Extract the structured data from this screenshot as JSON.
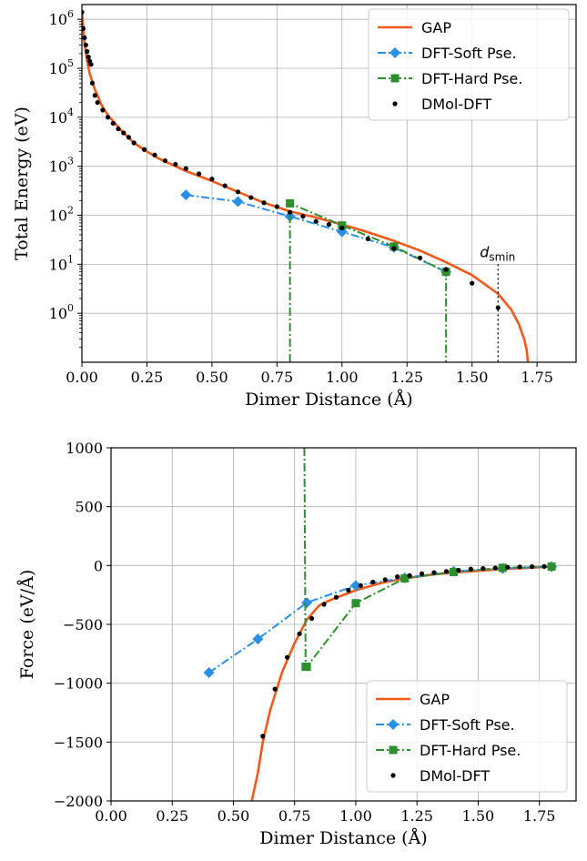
{
  "chart_data": [
    {
      "type": "line",
      "xlabel": "Dimer Distance (Å)",
      "ylabel": "Total Energy (eV)",
      "xlim": [
        0.0,
        1.9
      ],
      "ylim": [
        0.1,
        2000000
      ],
      "yscale": "log",
      "grid": true,
      "legend_position": "top-right",
      "xticks": [
        0.0,
        0.25,
        0.5,
        0.75,
        1.0,
        1.25,
        1.5,
        1.75
      ],
      "xtick_labels": [
        "0.00",
        "0.25",
        "0.50",
        "0.75",
        "1.00",
        "1.25",
        "1.50",
        "1.75"
      ],
      "yticks": [
        1,
        10,
        100,
        1000,
        10000,
        100000,
        1000000
      ],
      "ytick_base": "10",
      "ytick_exponents": [
        "0",
        "1",
        "2",
        "3",
        "4",
        "5",
        "6"
      ],
      "annotation": {
        "text": "d",
        "sub": "smin",
        "x": 1.6
      },
      "series": [
        {
          "name": "GAP",
          "color": "#f25a1c",
          "style": "solid",
          "x": [
            0.0,
            0.005,
            0.01,
            0.02,
            0.03,
            0.05,
            0.075,
            0.1,
            0.15,
            0.2,
            0.25,
            0.3,
            0.4,
            0.5,
            0.6,
            0.7,
            0.8,
            0.9,
            1.0,
            1.1,
            1.2,
            1.3,
            1.4,
            1.5,
            1.6,
            1.65,
            1.68,
            1.7,
            1.71,
            1.715
          ],
          "y": [
            1500000,
            700000,
            320000,
            140000,
            78000,
            37000,
            18000,
            11000,
            5500,
            3000,
            2000,
            1400,
            800,
            500,
            300,
            180,
            120,
            90,
            65,
            45,
            30,
            19,
            11,
            6,
            2.5,
            1.2,
            0.6,
            0.3,
            0.18,
            0.1
          ]
        },
        {
          "name": "DFT-Soft Pse.",
          "color": "#2b8fe8",
          "style": "dashdot",
          "marker": "diamond",
          "x": [
            0.4,
            0.6,
            0.8,
            1.0,
            1.2,
            1.4
          ],
          "y": [
            260,
            190,
            95,
            46,
            22,
            7
          ]
        },
        {
          "name": "DFT-Hard Pse.",
          "color": "#2e8f2e",
          "style": "dashdot",
          "marker": "square",
          "x": [
            0.8,
            0.8,
            1.0,
            1.2,
            1.4,
            1.4
          ],
          "y": [
            0.1,
            175,
            62,
            23,
            7,
            0.1
          ]
        },
        {
          "name": "DMol-DFT",
          "color": "#000000",
          "style": "none",
          "marker": "dot",
          "x": [
            0.0,
            0.005,
            0.01,
            0.015,
            0.02,
            0.025,
            0.03,
            0.035,
            0.04,
            0.05,
            0.06,
            0.08,
            0.1,
            0.12,
            0.14,
            0.16,
            0.18,
            0.2,
            0.24,
            0.28,
            0.32,
            0.36,
            0.4,
            0.45,
            0.5,
            0.55,
            0.6,
            0.65,
            0.7,
            0.75,
            0.8,
            0.85,
            0.9,
            0.95,
            1.0,
            1.1,
            1.2,
            1.3,
            1.4,
            1.5,
            1.6
          ],
          "y": [
            1400000,
            650000,
            420000,
            300000,
            220000,
            170000,
            140000,
            120000,
            50000,
            28000,
            20000,
            14000,
            10000,
            7500,
            5800,
            4800,
            3900,
            3000,
            2200,
            1700,
            1300,
            1100,
            900,
            700,
            550,
            400,
            300,
            230,
            180,
            150,
            115,
            95,
            75,
            65,
            55,
            33,
            21,
            13.5,
            7.8,
            4.1,
            1.3
          ]
        }
      ]
    },
    {
      "type": "line",
      "xlabel": "Dimer Distance (Å)",
      "ylabel": "Force (eV/Å)",
      "xlim": [
        0.0,
        1.9
      ],
      "ylim": [
        -2000,
        1000
      ],
      "grid": true,
      "legend_position": "bottom-right",
      "xticks": [
        0.0,
        0.25,
        0.5,
        0.75,
        1.0,
        1.25,
        1.5,
        1.75
      ],
      "xtick_labels": [
        "0.00",
        "0.25",
        "0.50",
        "0.75",
        "1.00",
        "1.25",
        "1.50",
        "1.75"
      ],
      "yticks": [
        -2000,
        -1500,
        -1000,
        -500,
        0,
        500,
        1000
      ],
      "ytick_labels": [
        "−2000",
        "−1500",
        "−1000",
        "−500",
        "0",
        "500",
        "1000"
      ],
      "series": [
        {
          "name": "GAP",
          "color": "#f25a1c",
          "style": "solid",
          "x": [
            0.575,
            0.6,
            0.62,
            0.65,
            0.7,
            0.75,
            0.8,
            0.85,
            0.9,
            1.0,
            1.1,
            1.2,
            1.3,
            1.4,
            1.5,
            1.6,
            1.7,
            1.8
          ],
          "y": [
            -2000,
            -1760,
            -1500,
            -1230,
            -900,
            -660,
            -460,
            -340,
            -290,
            -210,
            -150,
            -110,
            -80,
            -60,
            -45,
            -30,
            -20,
            -10
          ]
        },
        {
          "name": "DFT-Soft Pse.",
          "color": "#2b8fe8",
          "style": "dashdot",
          "marker": "diamond",
          "x": [
            0.4,
            0.6,
            0.8,
            1.0,
            1.2,
            1.4,
            1.6,
            1.8
          ],
          "y": [
            -910,
            -625,
            -315,
            -170,
            -105,
            -50,
            -25,
            -10
          ]
        },
        {
          "name": "DFT-Hard Pse.",
          "color": "#2e8f2e",
          "style": "dashdot",
          "marker": "square",
          "x": [
            0.79,
            0.795,
            0.8,
            1.0,
            1.2,
            1.4,
            1.6,
            1.8
          ],
          "y": [
            1000,
            -860,
            -860,
            -320,
            -110,
            -55,
            -20,
            -10
          ]
        },
        {
          "name": "DMol-DFT",
          "color": "#000000",
          "style": "none",
          "marker": "dot",
          "x": [
            0.62,
            0.67,
            0.72,
            0.77,
            0.82,
            0.87,
            0.92,
            0.97,
            1.02,
            1.07,
            1.12,
            1.17,
            1.22,
            1.27,
            1.32,
            1.37,
            1.42,
            1.47,
            1.52,
            1.57,
            1.62,
            1.67,
            1.72,
            1.77
          ],
          "y": [
            -1450,
            -1050,
            -780,
            -580,
            -450,
            -330,
            -270,
            -210,
            -170,
            -140,
            -120,
            -95,
            -85,
            -70,
            -60,
            -50,
            -40,
            -30,
            -25,
            -20,
            -15,
            -12,
            -10,
            -8
          ]
        }
      ]
    }
  ]
}
